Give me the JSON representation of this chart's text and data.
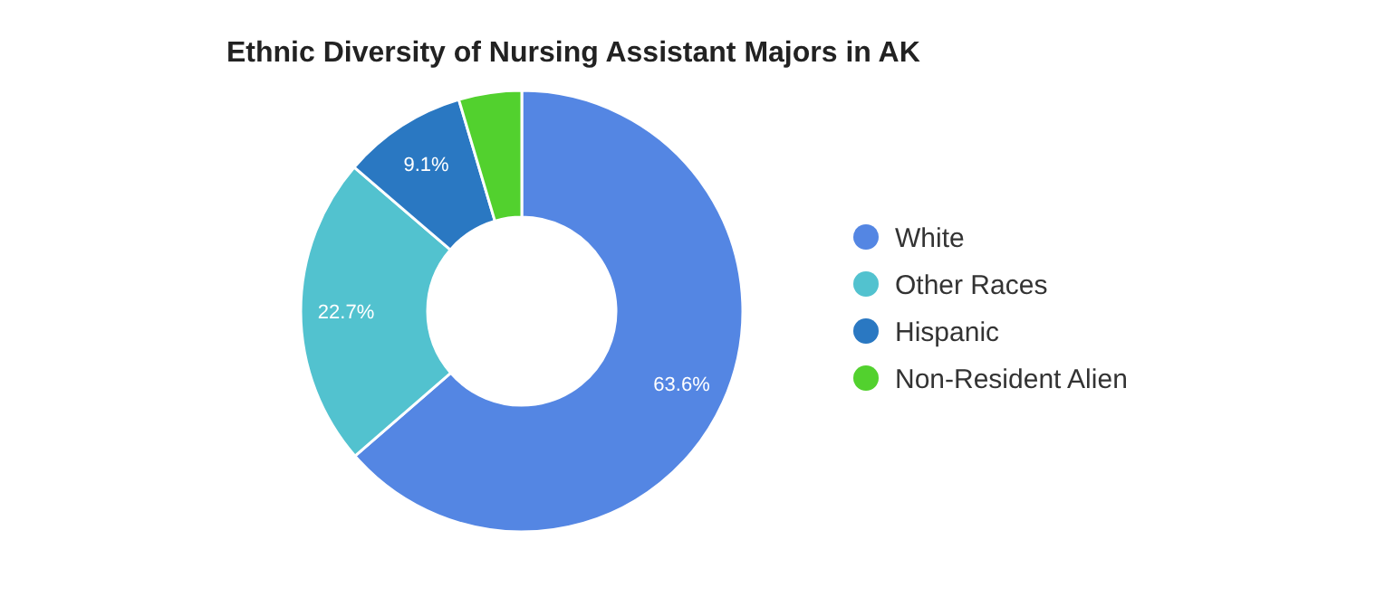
{
  "chart_data": {
    "type": "donut",
    "title": "Ethnic Diversity of Nursing Assistant Majors in AK",
    "categories": [
      "White",
      "Other Races",
      "Hispanic",
      "Non-Resident Alien"
    ],
    "values": [
      63.6,
      22.7,
      9.1,
      4.6
    ],
    "colors": [
      "#5486e3",
      "#52c2cf",
      "#2a78c2",
      "#52d12e"
    ],
    "value_labels": [
      "63.6%",
      "22.7%",
      "9.1%",
      null
    ],
    "legend": "right"
  }
}
